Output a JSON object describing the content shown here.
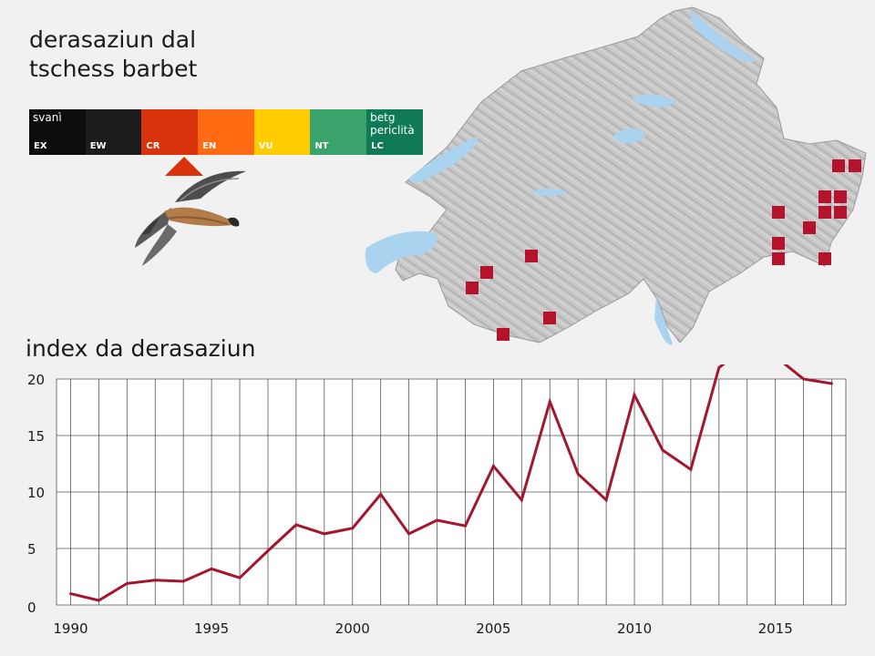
{
  "title": {
    "line1": "derasaziun dal",
    "line2": "tschess barbet"
  },
  "red_list": {
    "left_label": "svanì",
    "right_label_line1": "betg",
    "right_label_line2": "periclità",
    "selected": "CR",
    "categories": [
      {
        "code": "EX",
        "color": "#0d0d0d"
      },
      {
        "code": "EW",
        "color": "#1d1d1d"
      },
      {
        "code": "CR",
        "color": "#d9330c"
      },
      {
        "code": "EN",
        "color": "#ff6a13"
      },
      {
        "code": "VU",
        "color": "#ffcc00"
      },
      {
        "code": "NT",
        "color": "#3aa26b"
      },
      {
        "code": "LC",
        "color": "#0f7a55"
      }
    ]
  },
  "map": {
    "marker_color": "#b5122b",
    "lake_color": "#a9d3ef"
  },
  "chart_data": {
    "type": "line",
    "title": "index da derasaziun",
    "xlabel": "",
    "ylabel": "",
    "xlim": [
      1989.5,
      2017.5
    ],
    "ylim": [
      0,
      20
    ],
    "x_ticks": [
      1990,
      1995,
      2000,
      2005,
      2010,
      2015
    ],
    "y_ticks": [
      0,
      5,
      10,
      15,
      20
    ],
    "grid": true,
    "color": "#a3162e",
    "series": [
      {
        "x": [
          1990,
          1991,
          1992,
          1993,
          1994,
          1995,
          1996,
          1997,
          1998,
          1999,
          2000,
          2001,
          2002,
          2003,
          2004,
          2005,
          2006,
          2007,
          2008,
          2009,
          2010,
          2011,
          2012,
          2013,
          2014,
          2015,
          2016,
          2017
        ],
        "y": [
          1.0,
          0.4,
          1.9,
          2.2,
          2.1,
          3.2,
          2.4,
          4.8,
          7.1,
          6.3,
          6.8,
          9.8,
          6.3,
          7.5,
          7.0,
          12.3,
          9.3,
          18.0,
          11.6,
          9.3,
          18.6,
          13.7,
          12.0,
          21.0,
          23.0,
          22.0,
          20.0,
          19.6
        ]
      }
    ]
  }
}
